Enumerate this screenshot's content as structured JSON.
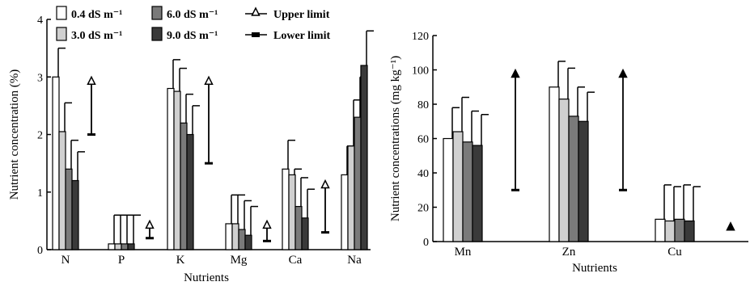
{
  "colors": {
    "s1": "#ffffff",
    "s2": "#d0d0d0",
    "s3": "#7a7a7a",
    "s4": "#3a3a3a",
    "stroke": "#000000"
  },
  "chart_data": [
    {
      "type": "bar",
      "categories": [
        "N",
        "P",
        "K",
        "Mg",
        "Ca",
        "Na"
      ],
      "xlabel": "Nutrients",
      "ylabel": "Nutrient concentration (%)",
      "ylim": [
        0,
        4
      ],
      "yticks": [
        "0",
        "1",
        "2",
        "3",
        "4"
      ],
      "grid": false,
      "legend": "top",
      "series": [
        {
          "name": "0.4 dS m⁻¹",
          "values": [
            3.0,
            0.1,
            2.8,
            0.45,
            1.4,
            1.3
          ],
          "errors": [
            0.5,
            0.5,
            0.5,
            0.5,
            0.5,
            0.5
          ]
        },
        {
          "name": "3.0 dS m⁻¹",
          "values": [
            2.05,
            0.1,
            2.75,
            0.45,
            1.3,
            1.8
          ],
          "errors": [
            0.5,
            0.5,
            0.4,
            0.5,
            0.1,
            0.8
          ]
        },
        {
          "name": "6.0 dS m⁻¹",
          "values": [
            1.4,
            0.1,
            2.2,
            0.35,
            0.75,
            2.3
          ],
          "errors": [
            0.5,
            0.5,
            0.5,
            0.5,
            0.5,
            0.7
          ]
        },
        {
          "name": "9.0 dS m⁻¹",
          "values": [
            1.2,
            0.1,
            2.0,
            0.25,
            0.55,
            3.2
          ],
          "errors": [
            0.5,
            0.5,
            0.5,
            0.5,
            0.5,
            0.6
          ]
        }
      ],
      "limits": {
        "upper_label": "Upper limit",
        "lower_label": "Lower limit",
        "ranges": [
          [
            2.0,
            3.0
          ],
          [
            0.2,
            0.5
          ],
          [
            1.5,
            3.0
          ],
          [
            0.15,
            0.5
          ],
          [
            0.3,
            1.2
          ]
        ]
      }
    },
    {
      "type": "bar",
      "categories": [
        "Mn",
        "Zn",
        "Cu"
      ],
      "xlabel": "Nutrients",
      "ylabel": "Nutrient concentrations (mg kg⁻¹)",
      "ylim": [
        0,
        120
      ],
      "yticks": [
        "0",
        "20",
        "40",
        "60",
        "80",
        "100",
        "120"
      ],
      "grid": false,
      "series": [
        {
          "name": "0.4 dS m⁻¹",
          "values": [
            60,
            90,
            13
          ],
          "errors": [
            18,
            15,
            20
          ]
        },
        {
          "name": "3.0 dS m⁻¹",
          "values": [
            64,
            83,
            12
          ],
          "errors": [
            20,
            18,
            20
          ]
        },
        {
          "name": "6.0 dS m⁻¹",
          "values": [
            58,
            73,
            13
          ],
          "errors": [
            18,
            17,
            20
          ]
        },
        {
          "name": "9.0 dS m⁻¹",
          "values": [
            56,
            70,
            12
          ],
          "errors": [
            18,
            17,
            20
          ]
        }
      ],
      "limits": {
        "ranges": [
          [
            30,
            100
          ],
          [
            30,
            100
          ],
          [
            5,
            10
          ]
        ]
      }
    }
  ]
}
